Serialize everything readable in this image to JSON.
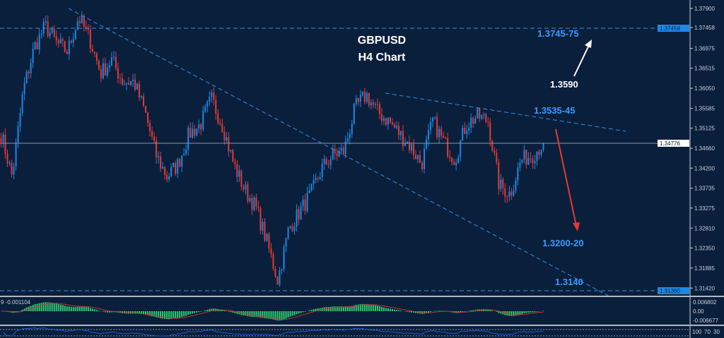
{
  "chart_data": {
    "type": "candlestick",
    "title": "GBPUSD",
    "subtitle": "H4 Chart",
    "symbol": "GBPUSD",
    "timeframe": "H4",
    "current_price": "1.34776",
    "ylim": [
      1.3125,
      1.381
    ],
    "y_ticks": [
      "1.37900",
      "1.37458",
      "1.36975",
      "1.36515",
      "1.36050",
      "1.35585",
      "1.35125",
      "1.34660",
      "1.34200",
      "1.33735",
      "1.33275",
      "1.32810",
      "1.32350",
      "1.31885",
      "1.31420"
    ],
    "y_tick_values": [
      1.379,
      1.37458,
      1.36975,
      1.36515,
      1.3605,
      1.35585,
      1.35125,
      1.3466,
      1.342,
      1.33735,
      1.33275,
      1.3281,
      1.3235,
      1.31885,
      1.3142
    ],
    "price_path_approx": [
      1.35,
      1.34,
      1.36,
      1.37,
      1.375,
      1.371,
      1.369,
      1.377,
      1.372,
      1.364,
      1.367,
      1.362,
      1.362,
      1.355,
      1.345,
      1.34,
      1.343,
      1.35,
      1.352,
      1.358,
      1.352,
      1.343,
      1.337,
      1.333,
      1.325,
      1.316,
      1.328,
      1.332,
      1.336,
      1.342,
      1.345,
      1.346,
      1.356,
      1.359,
      1.355,
      1.353,
      1.35,
      1.347,
      1.343,
      1.353,
      1.348,
      1.344,
      1.352,
      1.354,
      1.353,
      1.338,
      1.336,
      1.344,
      1.345,
      1.3478
    ],
    "levels": [
      {
        "label": "1.37458",
        "value": 1.37458,
        "style": "dashed",
        "tag_color": "#1e88e5"
      },
      {
        "label": "1.31360",
        "value": 1.3136,
        "style": "dashed",
        "tag_color": "#1e88e5"
      }
    ],
    "annotations": [
      {
        "text": "1.3745-75",
        "color": "#3a9bff"
      },
      {
        "text": "1.3590",
        "color": "#ffffff"
      },
      {
        "text": "1.3535-45",
        "color": "#3a9bff"
      },
      {
        "text": "1.3200-20",
        "color": "#3a9bff"
      },
      {
        "text": "1.3140",
        "color": "#3a9bff"
      }
    ],
    "bull_color": "#1e88e5",
    "bear_color": "#e53935",
    "macd": {
      "label": "9 -0.001104",
      "y_ticks": [
        "0.006802",
        "0.00",
        "-0.006677"
      ],
      "hist_color": "#2ecc71",
      "signal_color": "#c0392b"
    },
    "rsi": {
      "y_ticks": [
        "100",
        "70",
        "30"
      ],
      "line_color": "#1e5bd6"
    }
  }
}
